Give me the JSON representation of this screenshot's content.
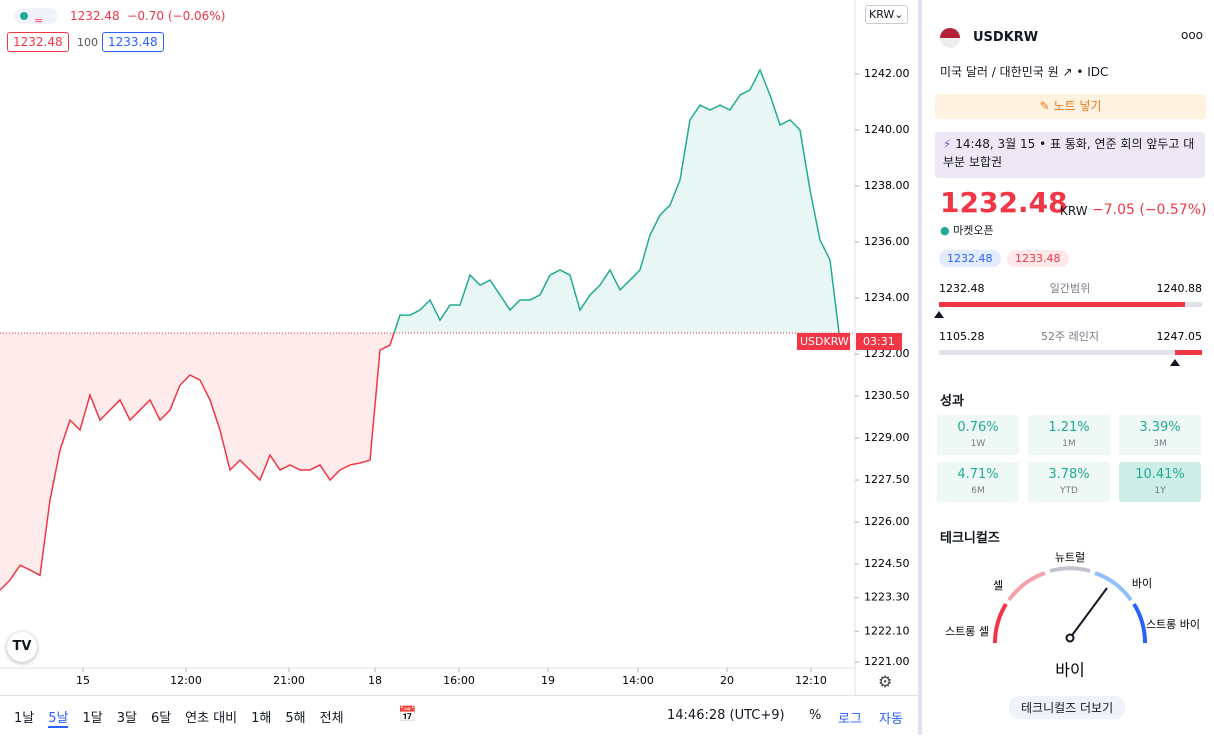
{
  "header": {
    "chip": "≈",
    "quote": "1232.48",
    "change": "−0.70 (−0.06%)",
    "bid": "1232.48",
    "qty": "100",
    "ask": "1233.48",
    "currency": "KRW"
  },
  "last_label": {
    "symbol": "USDKRW",
    "timer": "03:31"
  },
  "chart_data": {
    "type": "line",
    "baseline": 1232.75,
    "color_up": "#22ab94",
    "color_down": "#f23645",
    "series": [
      {
        "name": "USDKRW",
        "color": "#22ab94",
        "values": [
          1223.57,
          1223.93,
          1224.46,
          1224.29,
          1224.1,
          1226.79,
          1228.57,
          1229.64,
          1229.29,
          1230.54,
          1229.64,
          1230.0,
          1230.36,
          1229.64,
          1230.0,
          1230.36,
          1229.64,
          1230.0,
          1230.89,
          1231.25,
          1231.07,
          1230.36,
          1229.29,
          1227.86,
          1228.21,
          1227.86,
          1227.5,
          1228.39,
          1227.86,
          1228.04,
          1227.86,
          1227.86,
          1228.04,
          1227.5,
          1227.86,
          1228.04,
          1228.11,
          1228.21,
          1232.14,
          1232.32,
          1233.39,
          1233.39,
          1233.57,
          1233.93,
          1233.21,
          1233.75,
          1233.75,
          1234.82,
          1234.46,
          1234.64,
          1234.11,
          1233.57,
          1233.93,
          1233.93,
          1234.11,
          1234.82,
          1235.0,
          1234.82,
          1233.57,
          1234.11,
          1234.46,
          1235.0,
          1234.29,
          1234.64,
          1235.0,
          1236.25,
          1236.96,
          1237.32,
          1238.21,
          1240.36,
          1240.89,
          1240.71,
          1240.89,
          1240.71,
          1241.25,
          1241.43,
          1242.14,
          1241.25,
          1240.18,
          1240.36,
          1240.0,
          1237.86,
          1236.07,
          1235.36,
          1232.48
        ]
      }
    ],
    "xlim": [
      0,
      85.5
    ],
    "xticks": [
      {
        "value": 8.3,
        "label": "15"
      },
      {
        "value": 18.6,
        "label": "12:00"
      },
      {
        "value": 28.9,
        "label": "21:00"
      },
      {
        "value": 37.5,
        "label": "18"
      },
      {
        "value": 45.9,
        "label": "16:00"
      },
      {
        "value": 54.8,
        "label": "19"
      },
      {
        "value": 63.8,
        "label": "14:00"
      },
      {
        "value": 72.7,
        "label": "20"
      },
      {
        "value": 81.1,
        "label": "12:10"
      }
    ],
    "ylim": [
      1220.79,
      1244.64
    ],
    "yticks": [
      {
        "value": 1242,
        "label": "1242.00"
      },
      {
        "value": 1240,
        "label": "1240.00"
      },
      {
        "value": 1238,
        "label": "1238.00"
      },
      {
        "value": 1236,
        "label": "1236.00"
      },
      {
        "value": 1234,
        "label": "1234.00"
      },
      {
        "value": 1232,
        "label": "1232.00"
      },
      {
        "value": 1230.5,
        "label": "1230.50"
      },
      {
        "value": 1229,
        "label": "1229.00"
      },
      {
        "value": 1227.5,
        "label": "1227.50"
      },
      {
        "value": 1226,
        "label": "1226.00"
      },
      {
        "value": 1224.5,
        "label": "1224.50"
      },
      {
        "value": 1223.3,
        "label": "1223.30"
      },
      {
        "value": 1222.1,
        "label": "1222.10"
      },
      {
        "value": 1221,
        "label": "1221.00"
      }
    ]
  },
  "toolbar": {
    "ranges": [
      "1날",
      "5날",
      "1달",
      "3달",
      "6달",
      "연초 대비",
      "1해",
      "5해",
      "전체"
    ],
    "time": "14:46:28 (UTC+9)",
    "percent": "%",
    "log": "로그",
    "auto": "자동"
  },
  "panel": {
    "symbol": "USDKRW",
    "menu": "ooo",
    "description": "미국 달러 / 대한민국 원",
    "exchange": "IDC",
    "note": "노트 넣기",
    "news": {
      "time": "14:48, 3월 15",
      "text": "표 통화, 연준 회의 앞두고 대부분 보합권"
    },
    "price": "1232.48",
    "currency": "KRW",
    "change": "−7.05 (−0.57%)",
    "status": "마켓오픈",
    "bid": "1232.48",
    "ask": "1233.48",
    "day_range": {
      "low": 1232.48,
      "label": "일간범위",
      "high": 1240.88
    },
    "week52_range": {
      "low": 1105.28,
      "label": "52주 레인지",
      "high": 1247.05
    },
    "performance": {
      "title": "성과",
      "items": [
        {
          "value": "0.76%",
          "period": "1W"
        },
        {
          "value": "1.21%",
          "period": "1M"
        },
        {
          "value": "3.39%",
          "period": "3M"
        },
        {
          "value": "4.71%",
          "period": "6M"
        },
        {
          "value": "3.78%",
          "period": "YTD"
        },
        {
          "value": "10.41%",
          "period": "1Y"
        }
      ]
    },
    "technicals": {
      "title": "테크니컬즈",
      "neutral": "뉴트럴",
      "sell": "셀",
      "buy": "바이",
      "strong_sell": "스트롱 셀",
      "strong_buy": "스트롱 바이",
      "result": "바이",
      "more": "테크니컬즈 더보기"
    }
  }
}
